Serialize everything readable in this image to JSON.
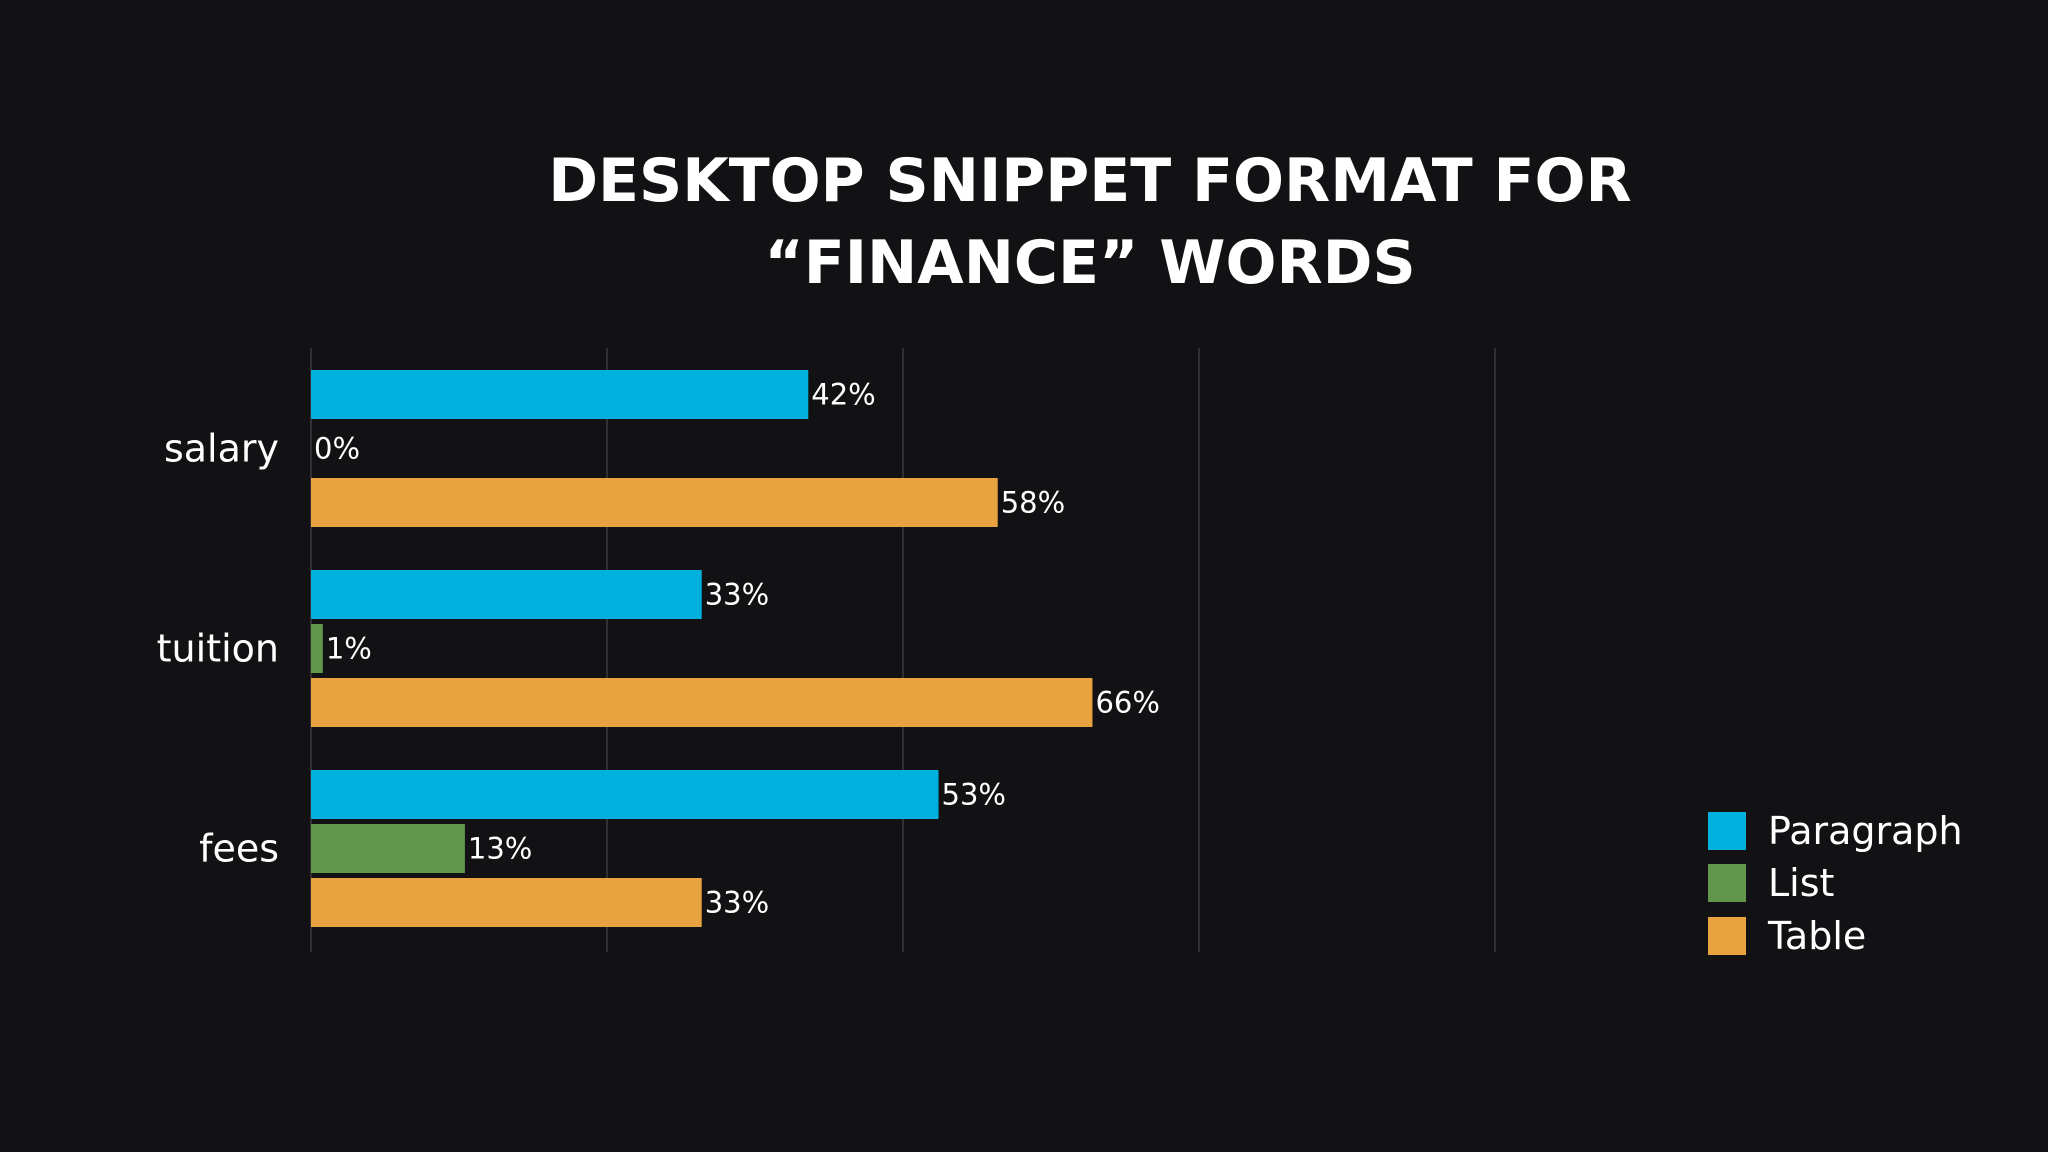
{
  "chart_data": {
    "type": "bar",
    "orientation": "horizontal",
    "title": "DESKTOP SNIPPET FORMAT FOR “FINANCE” WORDS",
    "title_lines": [
      "DESKTOP SNIPPET FORMAT FOR",
      "“FINANCE” WORDS"
    ],
    "categories": [
      "salary",
      "tuition",
      "fees"
    ],
    "series": [
      {
        "name": "Paragraph",
        "color": "#00b0de",
        "values": [
          42,
          33,
          53
        ],
        "labels": [
          "42%",
          "33%",
          "53%"
        ]
      },
      {
        "name": "List",
        "color": "#62964a",
        "values": [
          0,
          1,
          13
        ],
        "labels": [
          "0%",
          "1%",
          "13%"
        ]
      },
      {
        "name": "Table",
        "color": "#e8a23f",
        "values": [
          58,
          66,
          33
        ],
        "labels": [
          "58%",
          "66%",
          "33%"
        ]
      }
    ],
    "xlim": [
      0,
      100
    ],
    "xlabel": "",
    "ylabel": "",
    "grid": true,
    "legend_position": "bottom-right"
  }
}
